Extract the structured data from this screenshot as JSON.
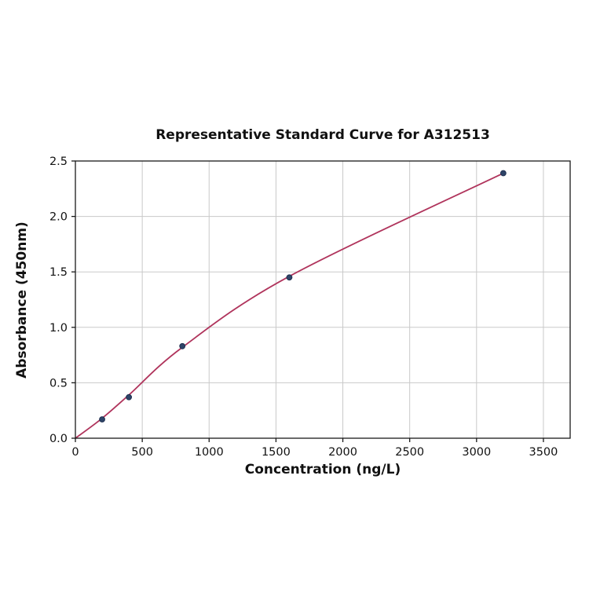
{
  "chart_data": {
    "type": "scatter",
    "title": "Representative Standard Curve for A312513",
    "xlabel": "Concentration (ng/L)",
    "ylabel": "Absorbance (450nm)",
    "xlim": [
      0,
      3700
    ],
    "ylim": [
      0,
      2.5
    ],
    "x_ticks": [
      {
        "value": 0,
        "label": "0"
      },
      {
        "value": 500,
        "label": "500"
      },
      {
        "value": 1000,
        "label": "1000"
      },
      {
        "value": 1500,
        "label": "1500"
      },
      {
        "value": 2000,
        "label": "2000"
      },
      {
        "value": 2500,
        "label": "2500"
      },
      {
        "value": 3000,
        "label": "3000"
      },
      {
        "value": 3500,
        "label": "3500"
      }
    ],
    "y_ticks": [
      {
        "value": 0.0,
        "label": "0.0"
      },
      {
        "value": 0.5,
        "label": "0.5"
      },
      {
        "value": 1.0,
        "label": "1.0"
      },
      {
        "value": 1.5,
        "label": "1.5"
      },
      {
        "value": 2.0,
        "label": "2.0"
      },
      {
        "value": 2.5,
        "label": "2.5"
      }
    ],
    "grid": true,
    "legend": "none",
    "series": [
      {
        "name": "standards",
        "style": "markers",
        "x": [
          200,
          400,
          800,
          1600,
          3200
        ],
        "y": [
          0.17,
          0.37,
          0.83,
          1.45,
          2.39
        ]
      },
      {
        "name": "fitted-curve",
        "style": "line",
        "x": [
          0,
          200,
          400,
          800,
          1600,
          3200
        ],
        "y": [
          0.0,
          0.18,
          0.39,
          0.82,
          1.46,
          2.39
        ]
      }
    ],
    "colors": {
      "curve": "#b0345c",
      "marker_fill": "#2e4468",
      "marker_edge": "#1f3050",
      "grid": "#c9c9c9",
      "spine": "#1a1a1a",
      "text": "#111111",
      "background": "#ffffff"
    }
  },
  "layout_note": "single scatter plot with fitted curve, no legend"
}
